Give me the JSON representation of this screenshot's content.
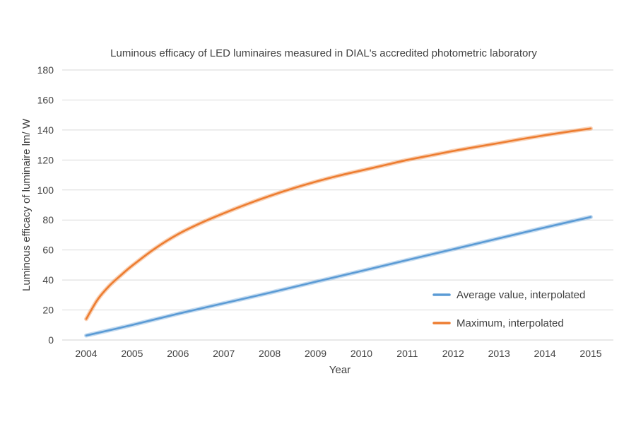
{
  "chart_data": {
    "type": "line",
    "title": "Luminous efficacy of LED luminaires measured in DIAL's accredited photometric laboratory",
    "xlabel": "Year",
    "ylabel": "Luminous efficacy of luminaire lm/ W",
    "xlim": [
      2004,
      2015
    ],
    "ylim": [
      0,
      180
    ],
    "x_ticks": [
      "2004",
      "2005",
      "2006",
      "2007",
      "2008",
      "2009",
      "2010",
      "2011",
      "2012",
      "2013",
      "2014",
      "2015"
    ],
    "y_ticks": [
      "0",
      "20",
      "40",
      "60",
      "80",
      "100",
      "120",
      "140",
      "160",
      "180"
    ],
    "grid": true,
    "legend_position": "right",
    "series": [
      {
        "name": "Average value, interpolated",
        "color": "#5b9bd5",
        "x": [
          2004,
          2005,
          2006,
          2007,
          2008,
          2009,
          2010,
          2011,
          2012,
          2013,
          2014,
          2015
        ],
        "y": [
          3,
          10,
          17.5,
          24.5,
          31.5,
          38.8,
          46,
          53.3,
          60.5,
          67.8,
          75,
          82
        ]
      },
      {
        "name": "Maximum, interpolated",
        "color": "#ed7d31",
        "x": [
          2004,
          2004.25,
          2004.5,
          2004.75,
          2005,
          2005.5,
          2006,
          2006.5,
          2007,
          2007.5,
          2008,
          2008.5,
          2009,
          2009.5,
          2010,
          2010.5,
          2011,
          2011.5,
          2012,
          2012.5,
          2013,
          2013.5,
          2014,
          2014.5,
          2015
        ],
        "y": [
          14,
          27,
          36,
          43,
          49.5,
          61,
          70.5,
          78,
          84.5,
          90.5,
          96,
          101,
          105.5,
          109.5,
          113,
          116.5,
          120,
          123,
          126,
          128.7,
          131.3,
          134,
          136.5,
          138.8,
          141
        ]
      }
    ]
  }
}
